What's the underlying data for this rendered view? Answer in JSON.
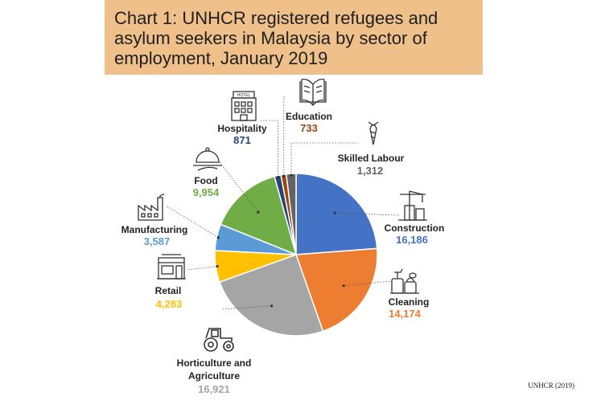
{
  "chart_data": {
    "type": "pie",
    "title": "Chart 1: UNHCR registered refugees and asylum seekers in Malaysia by sector of employment, January 2019",
    "slices": [
      {
        "name": "Construction",
        "value": 16186,
        "label": "16,186",
        "color": "#4472c4"
      },
      {
        "name": "Cleaning",
        "value": 14174,
        "label": "14,174",
        "color": "#ed7d31"
      },
      {
        "name": "Horticulture and Agriculture",
        "value": 16921,
        "label": "16,921",
        "color": "#a5a5a5"
      },
      {
        "name": "Retail",
        "value": 4283,
        "label": "4,283",
        "color": "#ffc000"
      },
      {
        "name": "Manufacturing",
        "value": 3587,
        "label": "3,587",
        "color": "#5b9bd5"
      },
      {
        "name": "Food",
        "value": 9954,
        "label": "9,954",
        "color": "#70ad47"
      },
      {
        "name": "Hospitality",
        "value": 871,
        "label": "871",
        "color": "#264478"
      },
      {
        "name": "Education",
        "value": 733,
        "label": "733",
        "color": "#9e480e"
      },
      {
        "name": "Skilled Labour",
        "value": 1312,
        "label": "1,312",
        "color": "#636363"
      }
    ],
    "start_direction": "top",
    "direction": "clockwise"
  },
  "icons": {
    "Construction": "crane-icon",
    "Cleaning": "cleaning-supplies-icon",
    "Horticulture and Agriculture": "tractor-icon",
    "Retail": "shop-icon",
    "Manufacturing": "factory-icon",
    "Food": "serving-cloche-icon",
    "Hospitality": "hotel-icon",
    "Education": "book-icon",
    "Skilled Labour": "necktie-icon"
  },
  "hotel_sign": "HOTEL",
  "source": "UNHCR (2019)"
}
